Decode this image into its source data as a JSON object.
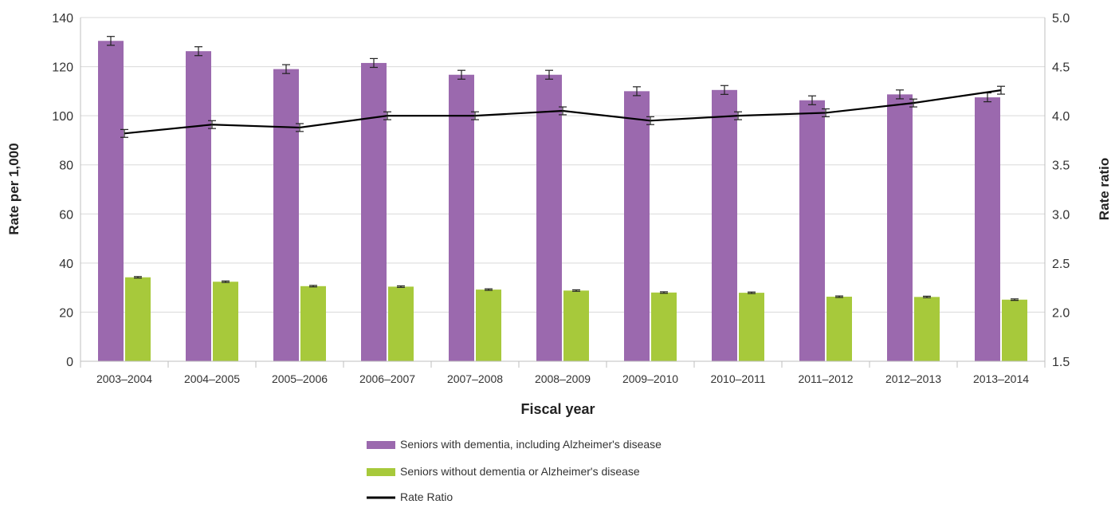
{
  "chart_data": {
    "type": "bar",
    "categories": [
      "2003–2004",
      "2004–2005",
      "2005–2006",
      "2006–2007",
      "2007–2008",
      "2008–2009",
      "2009–2010",
      "2010–2011",
      "2011–2012",
      "2012–2013",
      "2013–2014"
    ],
    "series": [
      {
        "name": "Seniors with dementia, including Alzheimer's disease",
        "type": "bar",
        "axis": "left",
        "color": "#9b69ae",
        "values": [
          130.5,
          126.3,
          119.0,
          121.5,
          116.7,
          116.7,
          110.0,
          110.5,
          106.3,
          108.7,
          107.5
        ],
        "error": [
          1.8,
          1.8,
          1.8,
          1.8,
          1.8,
          1.8,
          1.8,
          1.8,
          1.8,
          1.8,
          1.8
        ]
      },
      {
        "name": "Seniors without dementia or Alzheimer's disease",
        "type": "bar",
        "axis": "left",
        "color": "#a7c93b",
        "values": [
          34.2,
          32.4,
          30.6,
          30.4,
          29.2,
          28.8,
          28.0,
          27.9,
          26.3,
          26.2,
          25.1
        ],
        "error": [
          0.3,
          0.3,
          0.3,
          0.3,
          0.3,
          0.3,
          0.3,
          0.3,
          0.3,
          0.3,
          0.3
        ]
      },
      {
        "name": "Rate Ratio",
        "type": "line",
        "axis": "right",
        "color": "#000000",
        "values": [
          3.82,
          3.91,
          3.88,
          4.0,
          4.0,
          4.05,
          3.95,
          4.0,
          4.03,
          4.13,
          4.26
        ],
        "error": [
          0.04,
          0.04,
          0.04,
          0.04,
          0.04,
          0.04,
          0.04,
          0.04,
          0.04,
          0.04,
          0.04
        ]
      }
    ],
    "xlabel": "Fiscal year",
    "ylabel": "Rate per 1,000",
    "y2label": "Rate ratio",
    "ylim": [
      0,
      140
    ],
    "y2lim": [
      1.5,
      5.0
    ],
    "yticks": [
      "0",
      "20",
      "40",
      "60",
      "80",
      "100",
      "120",
      "140"
    ],
    "y2ticks": [
      "1.5",
      "2.0",
      "2.5",
      "3.0",
      "3.5",
      "4.0",
      "4.5",
      "5.0"
    ],
    "grid": true,
    "legend_position": "bottom"
  }
}
